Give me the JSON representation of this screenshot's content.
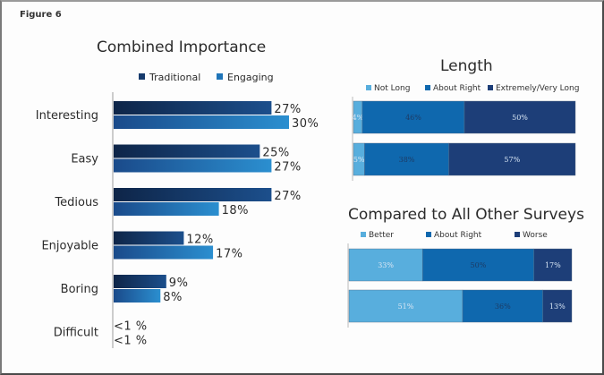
{
  "figure_label": "Figure 6",
  "chart_data": [
    {
      "type": "bar",
      "orientation": "horizontal",
      "title": "Combined Importance",
      "legend": [
        "Traditional",
        "Engaging"
      ],
      "legend_position": "top",
      "categories": [
        "Interesting",
        "Easy",
        "Tedious",
        "Enjoyable",
        "Boring",
        "Difficult"
      ],
      "series": [
        {
          "name": "Traditional",
          "values": [
            27,
            25,
            27,
            12,
            9,
            0.5
          ],
          "labels": [
            "27%",
            "25%",
            "27%",
            "12%",
            "9%",
            "<1 %"
          ]
        },
        {
          "name": "Engaging",
          "values": [
            30,
            27,
            18,
            17,
            8,
            0.5
          ],
          "labels": [
            "30%",
            "27%",
            "18%",
            "17%",
            "8%",
            "<1 %"
          ]
        }
      ],
      "xlim": [
        0,
        30
      ],
      "colors": {
        "Traditional": [
          "#0e2548",
          "#1c4f8c"
        ],
        "Engaging": [
          "#1a4a8a",
          "#2b8fd0"
        ]
      },
      "grid": false
    },
    {
      "type": "bar",
      "orientation": "horizontal",
      "stacked": true,
      "title": "Length",
      "legend": [
        "Not Long",
        "About Right",
        "Extremely/Very Long"
      ],
      "legend_position": "top",
      "rows": [
        {
          "values": [
            4,
            46,
            50
          ],
          "labels": [
            "4%",
            "46%",
            "50%"
          ]
        },
        {
          "values": [
            5,
            38,
            57
          ],
          "labels": [
            "5%",
            "38%",
            "57%"
          ]
        }
      ],
      "colors": [
        "#58aedd",
        "#0f68ae",
        "#1d3e78"
      ],
      "xlim": [
        0,
        100
      ]
    },
    {
      "type": "bar",
      "orientation": "horizontal",
      "stacked": true,
      "title": "Compared to All Other Surveys",
      "legend": [
        "Better",
        "About Right",
        "Worse"
      ],
      "legend_position": "top",
      "rows": [
        {
          "values": [
            33,
            50,
            17
          ],
          "labels": [
            "33%",
            "50%",
            "17%"
          ]
        },
        {
          "values": [
            51,
            36,
            13
          ],
          "labels": [
            "51%",
            "36%",
            "13%"
          ]
        }
      ],
      "colors": [
        "#58aedd",
        "#0f68ae",
        "#1d3e78"
      ],
      "xlim": [
        0,
        100
      ]
    }
  ]
}
